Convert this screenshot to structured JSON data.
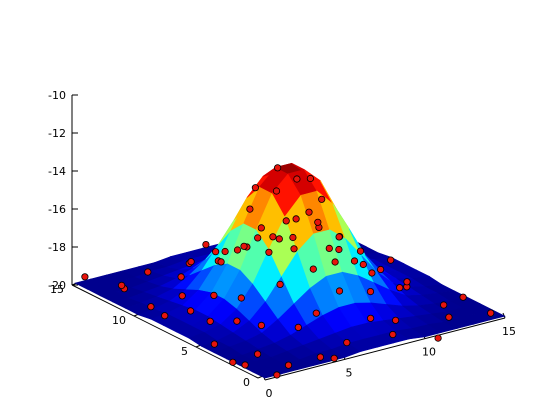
{
  "chart_data": {
    "type": "surface",
    "title": "",
    "xlabel": "",
    "ylabel": "",
    "zlabel": "",
    "xlim": [
      0,
      15
    ],
    "ylim": [
      0,
      15
    ],
    "zlim": [
      -20,
      -10
    ],
    "x_ticks": [
      "0",
      "5",
      "10",
      "15"
    ],
    "y_ticks": [
      "0",
      "5",
      "10",
      "15"
    ],
    "z_ticks": [
      "-20",
      "-18",
      "-16",
      "-14",
      "-12",
      "-10"
    ],
    "grid": false,
    "colormap": "jet",
    "surface": {
      "x": [
        0,
        1,
        2,
        3,
        4,
        5,
        6,
        7,
        8,
        9,
        10,
        11,
        12,
        13,
        14,
        15
      ],
      "y": [
        0,
        1,
        2,
        3,
        4,
        5,
        6,
        7,
        8,
        9,
        10,
        11,
        12,
        13,
        14,
        15
      ],
      "z_rows": [
        [
          -19.9,
          -19.9,
          -19.9,
          -19.9,
          -19.9,
          -19.9,
          -19.8,
          -19.8,
          -19.8,
          -19.8,
          -19.9,
          -19.9,
          -19.9,
          -19.9,
          -19.9,
          -19.9
        ],
        [
          -19.9,
          -19.9,
          -19.9,
          -19.9,
          -19.8,
          -19.8,
          -19.7,
          -19.7,
          -19.7,
          -19.7,
          -19.8,
          -19.8,
          -19.9,
          -19.9,
          -19.9,
          -19.9
        ],
        [
          -19.9,
          -19.9,
          -19.9,
          -19.8,
          -19.7,
          -19.6,
          -19.5,
          -19.4,
          -19.4,
          -19.5,
          -19.6,
          -19.7,
          -19.8,
          -19.9,
          -19.9,
          -19.9
        ],
        [
          -19.9,
          -19.9,
          -19.8,
          -19.7,
          -19.5,
          -19.2,
          -18.9,
          -18.7,
          -18.7,
          -18.9,
          -19.2,
          -19.5,
          -19.7,
          -19.8,
          -19.9,
          -19.9
        ],
        [
          -19.9,
          -19.8,
          -19.7,
          -19.5,
          -19.0,
          -18.4,
          -17.8,
          -17.4,
          -17.4,
          -17.8,
          -18.4,
          -19.0,
          -19.5,
          -19.7,
          -19.8,
          -19.9
        ],
        [
          -19.9,
          -19.8,
          -19.6,
          -19.2,
          -18.4,
          -17.3,
          -16.2,
          -15.5,
          -15.5,
          -16.2,
          -17.3,
          -18.4,
          -19.2,
          -19.6,
          -19.8,
          -19.9
        ],
        [
          -19.8,
          -19.7,
          -19.5,
          -18.9,
          -17.8,
          -16.2,
          -14.7,
          -13.8,
          -13.8,
          -14.7,
          -16.2,
          -17.8,
          -18.9,
          -19.5,
          -19.7,
          -19.8
        ],
        [
          -19.8,
          -19.7,
          -19.4,
          -18.7,
          -17.4,
          -15.5,
          -13.8,
          -13.0,
          -13.0,
          -13.8,
          -15.5,
          -17.4,
          -18.7,
          -19.4,
          -19.7,
          -19.8
        ],
        [
          -19.8,
          -19.7,
          -19.4,
          -18.7,
          -17.4,
          -15.5,
          -13.8,
          -13.0,
          -13.0,
          -13.8,
          -15.5,
          -17.4,
          -18.7,
          -19.4,
          -19.7,
          -19.8
        ],
        [
          -19.8,
          -19.7,
          -19.5,
          -18.9,
          -17.8,
          -16.2,
          -14.7,
          -13.8,
          -13.8,
          -14.7,
          -16.2,
          -17.8,
          -18.9,
          -19.5,
          -19.7,
          -19.8
        ],
        [
          -19.9,
          -19.8,
          -19.6,
          -19.2,
          -18.4,
          -17.3,
          -16.2,
          -15.5,
          -15.5,
          -16.2,
          -17.3,
          -18.4,
          -19.2,
          -19.6,
          -19.8,
          -19.9
        ],
        [
          -19.9,
          -19.8,
          -19.7,
          -19.5,
          -19.0,
          -18.4,
          -17.8,
          -17.4,
          -17.4,
          -17.8,
          -18.4,
          -19.0,
          -19.5,
          -19.7,
          -19.8,
          -19.9
        ],
        [
          -19.9,
          -19.9,
          -19.8,
          -19.7,
          -19.5,
          -19.2,
          -18.9,
          -18.7,
          -18.7,
          -18.9,
          -19.2,
          -19.5,
          -19.7,
          -19.8,
          -19.9,
          -19.9
        ],
        [
          -19.9,
          -19.9,
          -19.9,
          -19.8,
          -19.7,
          -19.6,
          -19.5,
          -19.4,
          -19.4,
          -19.5,
          -19.6,
          -19.7,
          -19.8,
          -19.9,
          -19.9,
          -19.9
        ],
        [
          -19.9,
          -19.9,
          -19.9,
          -19.9,
          -19.8,
          -19.8,
          -19.7,
          -19.7,
          -19.7,
          -19.7,
          -19.8,
          -19.8,
          -19.9,
          -19.9,
          -19.9,
          -19.9
        ],
        [
          -19.9,
          -19.9,
          -19.9,
          -19.9,
          -19.9,
          -19.9,
          -19.8,
          -19.8,
          -19.8,
          -19.8,
          -19.9,
          -19.9,
          -19.9,
          -19.9,
          -19.9,
          -19.9
        ]
      ]
    },
    "scatter_series": {
      "marker_color": "#e8140c",
      "points": [
        [
          7.2,
          8.1,
          -13.1
        ],
        [
          8.3,
          6.9,
          -13.5
        ],
        [
          6.5,
          7.3,
          -13.9
        ],
        [
          8.8,
          8.6,
          -14.2
        ],
        [
          7.5,
          6.0,
          -14.8
        ],
        [
          6.1,
          8.9,
          -15.3
        ],
        [
          9.4,
          7.4,
          -15.0
        ],
        [
          5.8,
          6.2,
          -15.9
        ],
        [
          9.1,
          5.6,
          -16.3
        ],
        [
          5.2,
          8.0,
          -16.8
        ],
        [
          10.1,
          8.5,
          -17.0
        ],
        [
          6.9,
          4.9,
          -17.3
        ],
        [
          4.6,
          9.5,
          -17.9
        ],
        [
          10.8,
          6.1,
          -17.6
        ],
        [
          8.0,
          10.4,
          -17.2
        ],
        [
          7.9,
          4.1,
          -18.4
        ],
        [
          11.3,
          9.2,
          -18.6
        ],
        [
          3.9,
          6.8,
          -18.8
        ],
        [
          12.0,
          7.4,
          -19.0
        ],
        [
          6.2,
          11.3,
          -18.9
        ],
        [
          3.1,
          4.2,
          -19.2
        ],
        [
          1.2,
          2.1,
          -19.6
        ],
        [
          2.5,
          1.3,
          -20.2
        ],
        [
          0.4,
          4.5,
          -19.7
        ],
        [
          4.8,
          0.6,
          -20.1
        ],
        [
          1.8,
          6.6,
          -19.5
        ],
        [
          6.3,
          1.5,
          -19.9
        ],
        [
          0.7,
          8.8,
          -19.7
        ],
        [
          8.7,
          0.9,
          -19.8
        ],
        [
          2.9,
          10.2,
          -19.6
        ],
        [
          10.3,
          2.7,
          -20.0
        ],
        [
          1.1,
          12.5,
          -19.6
        ],
        [
          12.6,
          1.4,
          -19.9
        ],
        [
          3.6,
          13.8,
          -19.7
        ],
        [
          13.7,
          3.2,
          -20.1
        ],
        [
          0.3,
          14.6,
          -19.5
        ],
        [
          14.5,
          0.5,
          -19.8
        ],
        [
          5.4,
          12.8,
          -19.3
        ],
        [
          12.9,
          5.1,
          -19.6
        ],
        [
          2.2,
          14.1,
          -20.2
        ],
        [
          14.2,
          2.3,
          -19.5
        ],
        [
          7.6,
          13.5,
          -19.4
        ],
        [
          13.4,
          7.8,
          -19.7
        ],
        [
          9.9,
          12.2,
          -19.5
        ],
        [
          12.3,
          10.0,
          -19.8
        ],
        [
          11.5,
          13.9,
          -19.6
        ],
        [
          13.8,
          11.6,
          -20.0
        ],
        [
          14.7,
          14.4,
          -19.7
        ],
        [
          15.0,
          13.1,
          -20.1
        ],
        [
          13.2,
          15.0,
          -19.5
        ],
        [
          4.3,
          2.8,
          -19.1
        ],
        [
          2.6,
          5.5,
          -19.3
        ],
        [
          5.9,
          3.4,
          -18.9
        ],
        [
          3.3,
          8.2,
          -19.0
        ],
        [
          8.5,
          2.4,
          -19.4
        ],
        [
          9.6,
          3.8,
          -18.7
        ],
        [
          11.9,
          4.4,
          -19.2
        ],
        [
          4.1,
          11.8,
          -19.4
        ],
        [
          10.6,
          11.1,
          -19.1
        ],
        [
          11.8,
          12.7,
          -19.3
        ],
        [
          0.9,
          0.2,
          -20.0
        ],
        [
          0.1,
          1.7,
          -19.8
        ],
        [
          1.5,
          10.9,
          -20.1
        ],
        [
          10.9,
          0.1,
          -20.2
        ],
        [
          14.9,
          8.9,
          -19.9
        ],
        [
          8.1,
          14.9,
          -19.6
        ],
        [
          6.7,
          14.3,
          -20.0
        ],
        [
          14.1,
          6.6,
          -20.1
        ],
        [
          3.7,
          0.3,
          -19.7
        ],
        [
          0.6,
          3.3,
          -20.3
        ],
        [
          7.0,
          9.6,
          -14.6
        ],
        [
          9.7,
          9.8,
          -16.9
        ],
        [
          5.5,
          10.1,
          -17.8
        ],
        [
          10.4,
          4.7,
          -18.2
        ],
        [
          4.9,
          5.0,
          -17.7
        ],
        [
          7.7,
          11.9,
          -18.8
        ],
        [
          12.4,
          8.6,
          -19.3
        ],
        [
          2.0,
          8.4,
          -19.6
        ],
        [
          8.9,
          12.9,
          -19.2
        ],
        [
          11.1,
          14.6,
          -19.8
        ]
      ]
    }
  }
}
